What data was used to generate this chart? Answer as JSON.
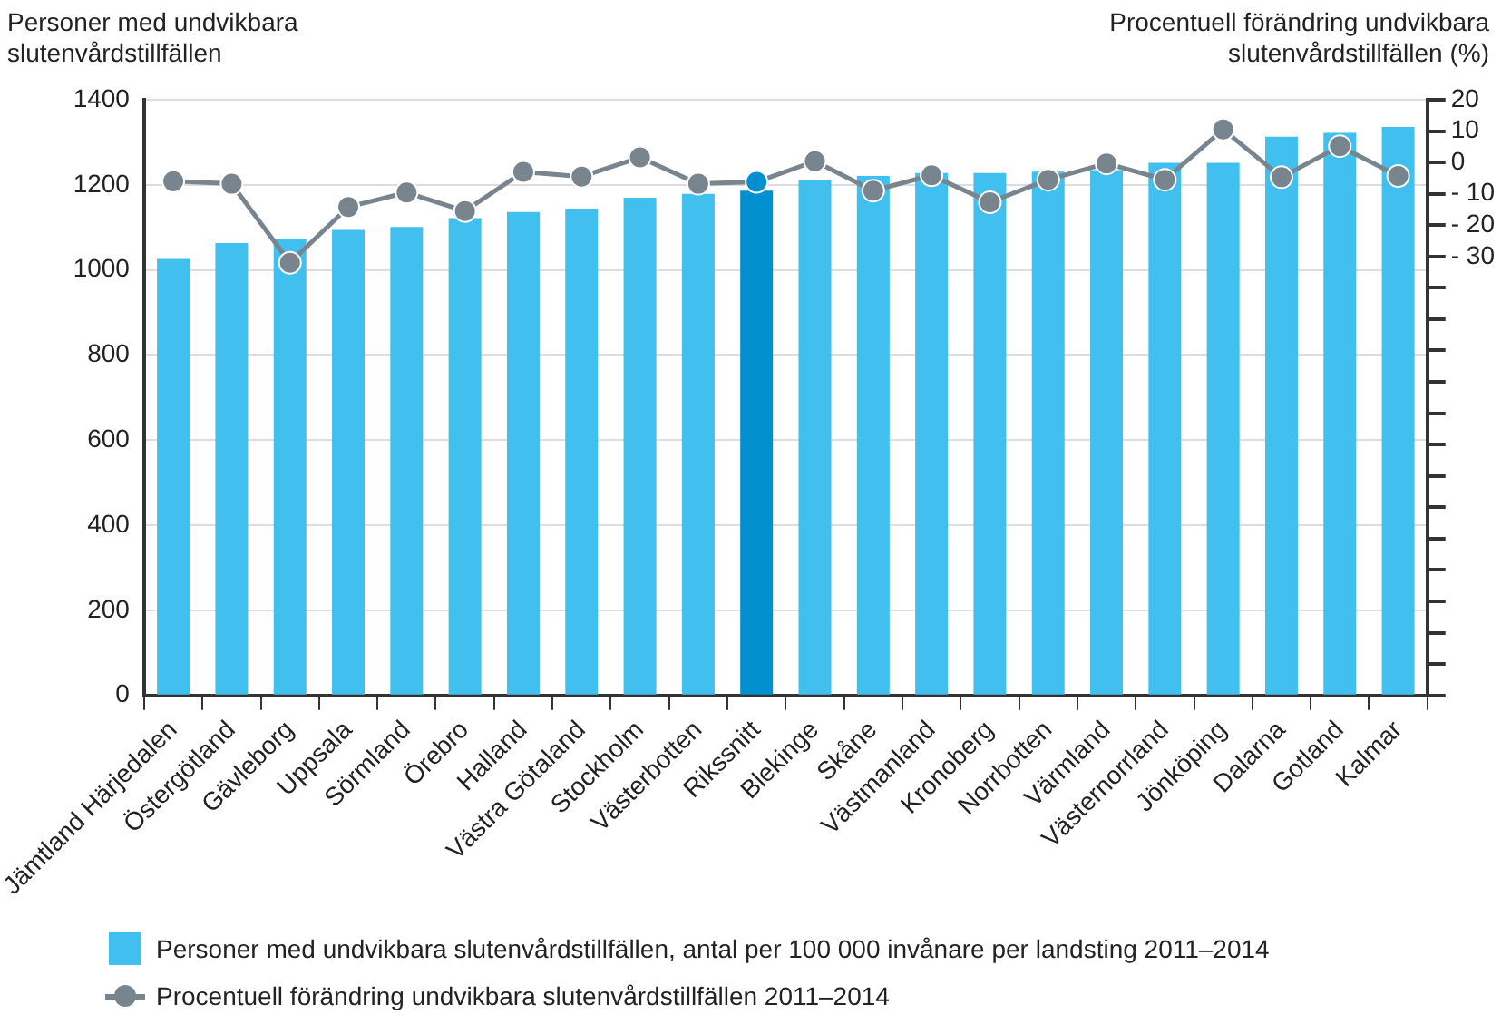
{
  "chart_data": {
    "type": "bar",
    "ylabel": "Personer med undvikbara slutenvårdstillfällen",
    "y2label": "Procentuell förändring undvikbara slutenvårdstillfällen (%)",
    "categories": [
      "Jämtland Härjedalen",
      "Östergötland",
      "Gävleborg",
      "Uppsala",
      "Sörmland",
      "Örebro",
      "Halland",
      "Västra Götaland",
      "Stockholm",
      "Västerbotten",
      "Rikssnitt",
      "Blekinge",
      "Skåne",
      "Västmanland",
      "Kronoberg",
      "Norrbotten",
      "Värmland",
      "Västernorrland",
      "Jönköping",
      "Dalarna",
      "Gotland",
      "Kalmar"
    ],
    "series": [
      {
        "name": "Personer med undvikbara slutenvårdstillfällen, antal per 100 000 invånare per landsting 2011–2014",
        "color": "#41bfef",
        "colors": [
          "#41bfef",
          "#41bfef",
          "#41bfef",
          "#41bfef",
          "#41bfef",
          "#41bfef",
          "#41bfef",
          "#41bfef",
          "#41bfef",
          "#41bfef",
          "#0090d0",
          "#41bfef",
          "#41bfef",
          "#41bfef",
          "#41bfef",
          "#41bfef",
          "#41bfef",
          "#41bfef",
          "#41bfef",
          "#41bfef",
          "#41bfef",
          "#41bfef"
        ],
        "values": [
          1026,
          1063,
          1072,
          1094,
          1101,
          1122,
          1136,
          1144,
          1170,
          1179,
          1186,
          1210,
          1221,
          1228,
          1228,
          1231,
          1235,
          1252,
          1252,
          1313,
          1322,
          1336
        ]
      },
      {
        "name": "Procentuell förändring undvikbara slutenvårdstillfällen 2011–2014",
        "type": "line",
        "axis": "y2",
        "color": "#78858f",
        "colors": [
          "#78858f",
          "#78858f",
          "#78858f",
          "#78858f",
          "#78858f",
          "#78858f",
          "#78858f",
          "#78858f",
          "#78858f",
          "#78858f",
          "#0090d0",
          "#78858f",
          "#78858f",
          "#78858f",
          "#78858f",
          "#78858f",
          "#78858f",
          "#78858f",
          "#78858f",
          "#78858f",
          "#78858f",
          "#78858f"
        ],
        "values": [
          -6,
          -6.8,
          -32,
          -14.2,
          -9.6,
          -15.5,
          -3,
          -4.5,
          1.6,
          -6.8,
          -6.2,
          0.4,
          -9,
          -4.1,
          -12.7,
          -5.5,
          -0.3,
          -5.5,
          10.5,
          -4.7,
          5.2,
          -4.3
        ]
      }
    ],
    "ylim": [
      0,
      1400
    ],
    "yticks": [
      0,
      200,
      400,
      600,
      800,
      1000,
      1200,
      1400
    ],
    "y2lim": [
      -170,
      20
    ],
    "y2ticks": [
      20,
      10,
      0,
      {
        "value": -10,
        "label": "- 10"
      },
      {
        "value": -20,
        "label": "- 20"
      },
      {
        "value": -30,
        "label": "- 30"
      },
      {
        "value": -40,
        "label": null
      },
      {
        "value": -50,
        "label": null
      },
      {
        "value": -60,
        "label": null
      },
      {
        "value": -70,
        "label": null
      },
      {
        "value": -80,
        "label": null
      },
      {
        "value": -90,
        "label": null
      },
      {
        "value": -100,
        "label": null
      },
      {
        "value": -110,
        "label": null
      },
      {
        "value": -120,
        "label": null
      },
      {
        "value": -130,
        "label": null
      },
      {
        "value": -140,
        "label": null
      },
      {
        "value": -150,
        "label": null
      },
      {
        "value": -160,
        "label": null
      },
      {
        "value": -170,
        "label": null
      }
    ],
    "grid": "y",
    "legend": "bottom",
    "marker": "circle",
    "line_style": "solid"
  }
}
